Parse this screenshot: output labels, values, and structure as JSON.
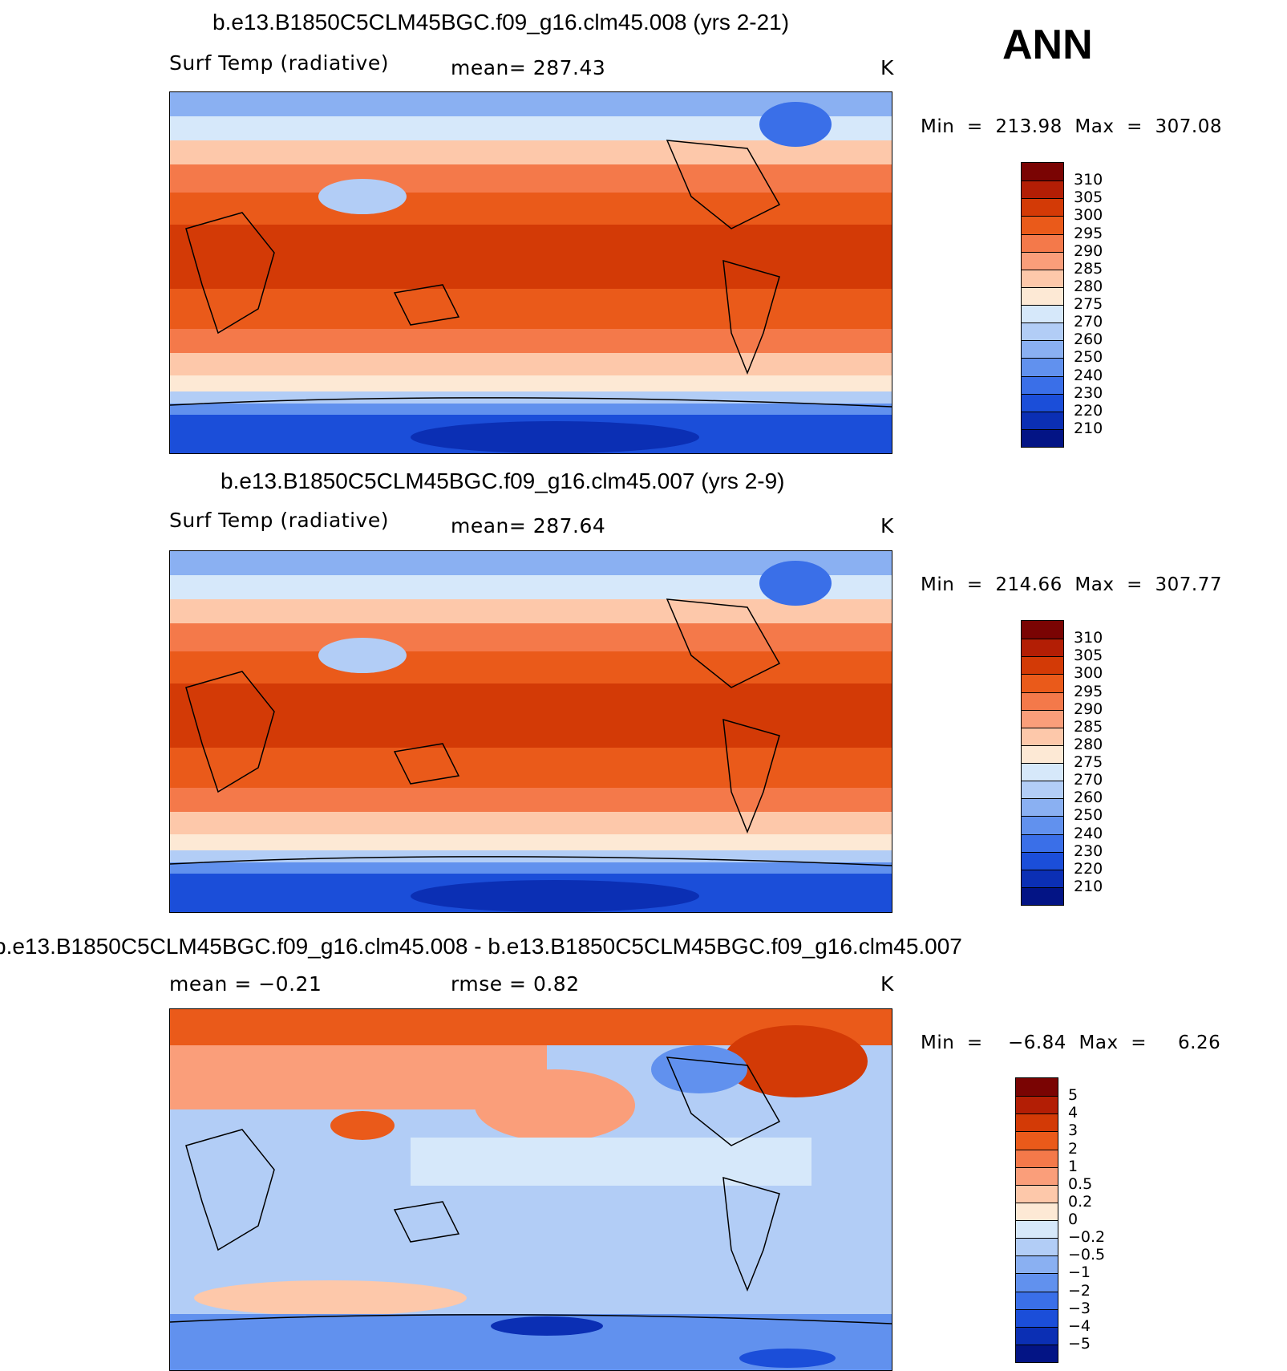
{
  "chart_data": [
    {
      "type": "heatmap",
      "title": "b.e13.B1850C5CLM45BGC.f09_g16.clm45.008 (yrs 2-21)",
      "variable": "Surf Temp (radiative)",
      "mean_text": "mean= 287.43",
      "units": "K",
      "minmax_text": "Min  =  213.98  Max  =  307.08",
      "min": 213.98,
      "max": 307.08,
      "colorbar": {
        "labels": [
          "310",
          "305",
          "300",
          "295",
          "290",
          "285",
          "280",
          "275",
          "270",
          "260",
          "250",
          "240",
          "230",
          "220",
          "210"
        ],
        "colors": [
          "#7a0403",
          "#b31e05",
          "#d33a06",
          "#ea5a1a",
          "#f4794a",
          "#fa9e7a",
          "#fdc8aa",
          "#fde9d5",
          "#d6e8fa",
          "#b2cdf6",
          "#8ab0f2",
          "#6191ee",
          "#3a6fe8",
          "#1b4ed9",
          "#0b2fb4",
          "#031485"
        ],
        "ticks": [
          310,
          305,
          300,
          295,
          290,
          285,
          280,
          275,
          270,
          260,
          250,
          240,
          230,
          220,
          210
        ]
      }
    },
    {
      "type": "heatmap",
      "title": "b.e13.B1850C5CLM45BGC.f09_g16.clm45.007 (yrs 2-9)",
      "variable": "Surf Temp (radiative)",
      "mean_text": "mean= 287.64",
      "units": "K",
      "minmax_text": "Min  =  214.66  Max  =  307.77",
      "min": 214.66,
      "max": 307.77,
      "colorbar": {
        "labels": [
          "310",
          "305",
          "300",
          "295",
          "290",
          "285",
          "280",
          "275",
          "270",
          "260",
          "250",
          "240",
          "230",
          "220",
          "210"
        ],
        "colors": [
          "#7a0403",
          "#b31e05",
          "#d33a06",
          "#ea5a1a",
          "#f4794a",
          "#fa9e7a",
          "#fdc8aa",
          "#fde9d5",
          "#d6e8fa",
          "#b2cdf6",
          "#8ab0f2",
          "#6191ee",
          "#3a6fe8",
          "#1b4ed9",
          "#0b2fb4",
          "#031485"
        ],
        "ticks": [
          310,
          305,
          300,
          295,
          290,
          285,
          280,
          275,
          270,
          260,
          250,
          240,
          230,
          220,
          210
        ]
      }
    },
    {
      "type": "heatmap",
      "title": "b.e13.B1850C5CLM45BGC.f09_g16.clm45.008 - b.e13.B1850C5CLM45BGC.f09_g16.clm45.007",
      "variable": "mean =",
      "mean_text": "mean =    −0.21",
      "rmse_text": "rmse =     0.82",
      "units": "K",
      "minmax_text": "Min  =    −6.84  Max  =     6.26",
      "min": -6.84,
      "max": 6.26,
      "colorbar": {
        "labels": [
          "5",
          "4",
          "3",
          "2",
          "1",
          "0.5",
          "0.2",
          "0",
          "−0.2",
          "−0.5",
          "−1",
          "−2",
          "−3",
          "−4",
          "−5"
        ],
        "colors": [
          "#7a0403",
          "#b31e05",
          "#d33a06",
          "#ea5a1a",
          "#f4794a",
          "#fa9e7a",
          "#fdc8aa",
          "#fde9d5",
          "#d6e8fa",
          "#b2cdf6",
          "#8ab0f2",
          "#6191ee",
          "#3a6fe8",
          "#1b4ed9",
          "#0b2fb4",
          "#031485"
        ],
        "ticks": [
          5,
          4,
          3,
          2,
          1,
          0.5,
          0.2,
          0,
          -0.2,
          -0.5,
          -1,
          -2,
          -3,
          -4,
          -5
        ]
      }
    }
  ],
  "season": "ANN"
}
